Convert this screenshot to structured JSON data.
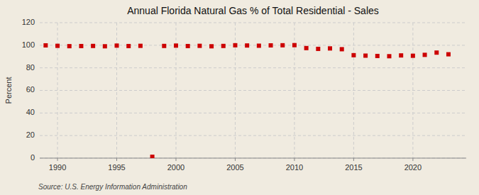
{
  "chart_data": {
    "type": "scatter",
    "title": "Annual Florida Natural Gas % of Total Residential - Sales",
    "ylabel": "Percent",
    "source": "Source: U.S. Energy Information Administration",
    "x": [
      1989,
      1990,
      1991,
      1992,
      1993,
      1994,
      1995,
      1996,
      1997,
      1998,
      1999,
      2000,
      2001,
      2002,
      2003,
      2004,
      2005,
      2006,
      2007,
      2008,
      2009,
      2010,
      2011,
      2012,
      2013,
      2014,
      2015,
      2016,
      2017,
      2018,
      2019,
      2020,
      2021,
      2022,
      2023
    ],
    "values": [
      99.9,
      99.5,
      99.2,
      99.3,
      99.4,
      99.1,
      99.7,
      99.3,
      99.5,
      1.2,
      99.4,
      99.7,
      99.3,
      99.5,
      99.1,
      99.4,
      100.0,
      99.8,
      99.6,
      99.9,
      100.0,
      100.1,
      97.5,
      96.8,
      97.2,
      96.5,
      91.2,
      90.8,
      90.5,
      90.3,
      91.0,
      90.7,
      91.5,
      93.5,
      92.0
    ],
    "color": "#cc0000",
    "marker": "square",
    "xlim": [
      1988.5,
      2024.5
    ],
    "ylim": [
      0,
      120
    ],
    "xticks": [
      1990,
      1995,
      2000,
      2005,
      2010,
      2015,
      2020
    ],
    "yticks": [
      0,
      20,
      40,
      60,
      80,
      100,
      120
    ],
    "grid": true
  }
}
